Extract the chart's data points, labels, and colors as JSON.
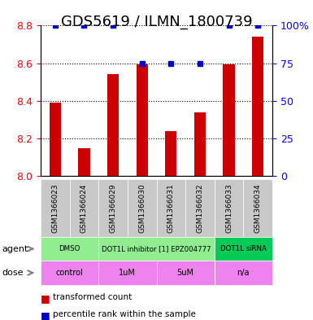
{
  "title": "GDS5619 / ILMN_1800739",
  "samples": [
    "GSM1366023",
    "GSM1366024",
    "GSM1366029",
    "GSM1366030",
    "GSM1366031",
    "GSM1366032",
    "GSM1366033",
    "GSM1366034"
  ],
  "red_values": [
    8.39,
    8.15,
    8.54,
    8.595,
    8.24,
    8.34,
    8.595,
    8.74
  ],
  "blue_values": [
    100,
    100,
    100,
    75,
    75,
    75,
    100,
    100
  ],
  "ylim_left": [
    8.0,
    8.8
  ],
  "ylim_right": [
    0,
    100
  ],
  "yticks_left": [
    8.0,
    8.2,
    8.4,
    8.6,
    8.8
  ],
  "yticks_right": [
    0,
    25,
    50,
    75,
    100
  ],
  "agent_groups": [
    {
      "label": "DMSO",
      "start": 0,
      "end": 2,
      "color": "#90EE90"
    },
    {
      "label": "DOT1L inhibitor [1] EPZ004777",
      "start": 2,
      "end": 6,
      "color": "#90EE90"
    },
    {
      "label": "DOT1L siRNA",
      "start": 6,
      "end": 8,
      "color": "#00CC55"
    }
  ],
  "dose_groups": [
    {
      "label": "control",
      "start": 0,
      "end": 2,
      "color": "#EE82EE"
    },
    {
      "label": "1uM",
      "start": 2,
      "end": 4,
      "color": "#EE82EE"
    },
    {
      "label": "5uM",
      "start": 4,
      "end": 6,
      "color": "#EE82EE"
    },
    {
      "label": "n/a",
      "start": 6,
      "end": 8,
      "color": "#EE82EE"
    }
  ],
  "agent_row_label": "agent",
  "dose_row_label": "dose",
  "legend_red": "transformed count",
  "legend_blue": "percentile rank within the sample",
  "bar_color": "#CC0000",
  "dot_color": "#0000CC",
  "bar_width": 0.4,
  "title_fontsize": 13,
  "tick_fontsize": 9
}
